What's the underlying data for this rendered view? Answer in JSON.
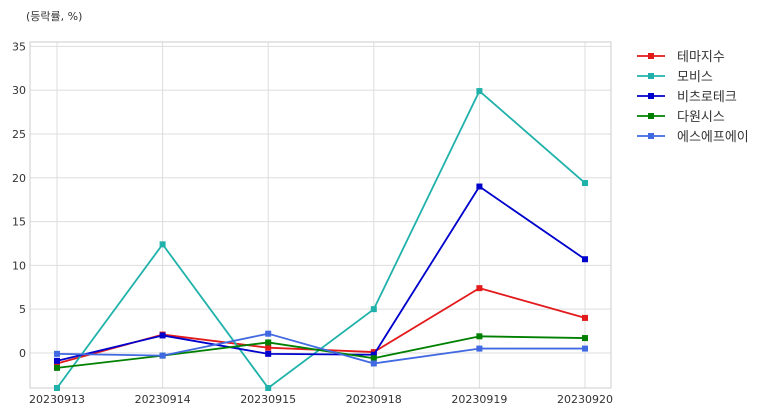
{
  "chart_data": {
    "type": "line",
    "ylabel": "(등락률, %)",
    "categories": [
      "20230913",
      "20230914",
      "20230915",
      "20230918",
      "20230919",
      "20230920"
    ],
    "ylim": [
      -4,
      35.5
    ],
    "yticks": [
      0,
      5,
      10,
      15,
      20,
      25,
      30,
      35
    ],
    "grid": true,
    "legend_position": "outside-right-top",
    "series": [
      {
        "name": "테마지수",
        "color": "#e31a1c",
        "values": [
          -1.2,
          2.1,
          0.6,
          0.1,
          7.4,
          4.0
        ]
      },
      {
        "name": "모비스",
        "color": "#20b2aa",
        "values": [
          -4.0,
          12.4,
          -4.0,
          5.0,
          29.9,
          19.4
        ]
      },
      {
        "name": "비츠로테크",
        "color": "#0000cd",
        "values": [
          -0.9,
          2.0,
          -0.1,
          -0.2,
          19.0,
          10.7
        ]
      },
      {
        "name": "다원시스",
        "color": "#008000",
        "values": [
          -1.7,
          -0.3,
          1.2,
          -0.6,
          1.9,
          1.7
        ]
      },
      {
        "name": "에스에프에이",
        "color": "#4169e1",
        "values": [
          -0.1,
          -0.3,
          2.2,
          -1.2,
          0.5,
          0.5
        ]
      }
    ]
  }
}
